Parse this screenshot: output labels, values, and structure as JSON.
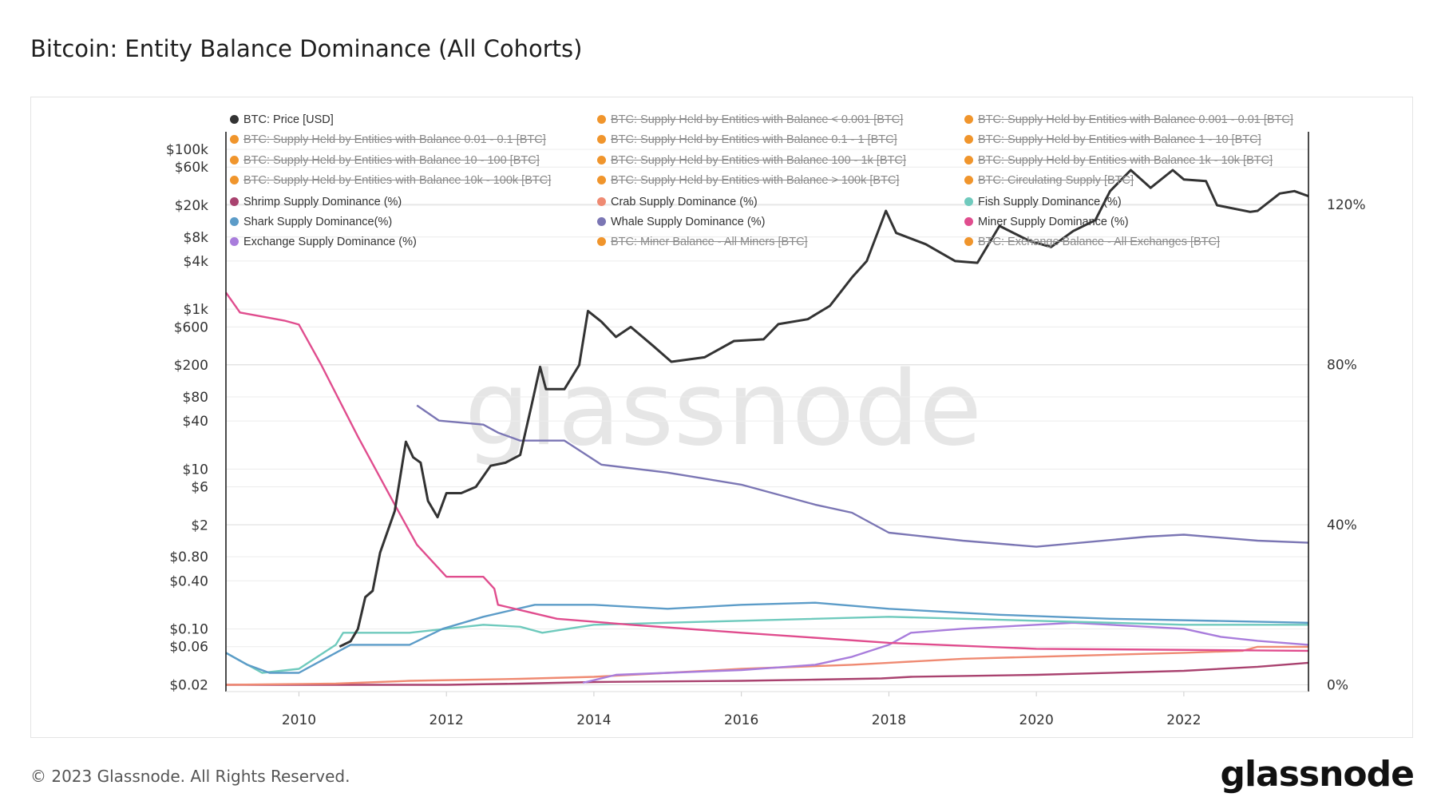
{
  "title": "Bitcoin: Entity Balance Dominance (All Cohorts)",
  "footer": "© 2023 Glassnode. All Rights Reserved.",
  "logo": "glassnode",
  "watermark": "glassnode",
  "legend": [
    {
      "label": "BTC: Price [USD]",
      "color": "#333333",
      "active": true
    },
    {
      "label": "BTC: Supply Held by Entities with Balance < 0.001 [BTC]",
      "color": "#f0952c",
      "active": false
    },
    {
      "label": "BTC: Supply Held by Entities with Balance 0.001 - 0.01 [BTC]",
      "color": "#f0952c",
      "active": false
    },
    {
      "label": "BTC: Supply Held by Entities with Balance 0.01 - 0.1 [BTC]",
      "color": "#f0952c",
      "active": false
    },
    {
      "label": "BTC: Supply Held by Entities with Balance 0.1 - 1 [BTC]",
      "color": "#f0952c",
      "active": false
    },
    {
      "label": "BTC: Supply Held by Entities with Balance 1 - 10 [BTC]",
      "color": "#f0952c",
      "active": false
    },
    {
      "label": "BTC: Supply Held by Entities with Balance 10 - 100 [BTC]",
      "color": "#f0952c",
      "active": false
    },
    {
      "label": "BTC: Supply Held by Entities with Balance 100 - 1k [BTC]",
      "color": "#f0952c",
      "active": false
    },
    {
      "label": "BTC: Supply Held by Entities with Balance 1k - 10k [BTC]",
      "color": "#f0952c",
      "active": false
    },
    {
      "label": "BTC: Supply Held by Entities with Balance 10k - 100k [BTC]",
      "color": "#f0952c",
      "active": false
    },
    {
      "label": "BTC: Supply Held by Entities with Balance > 100k [BTC]",
      "color": "#f0952c",
      "active": false
    },
    {
      "label": "BTC: Circulating Supply [BTC]",
      "color": "#f0952c",
      "active": false
    },
    {
      "label": "Shrimp Supply Dominance (%)",
      "color": "#a9426f",
      "active": true
    },
    {
      "label": "Crab Supply Dominance (%)",
      "color": "#ef8a72",
      "active": true
    },
    {
      "label": "Fish Supply Dominance (%)",
      "color": "#6fcabd",
      "active": true
    },
    {
      "label": "Shark Supply Dominance(%)",
      "color": "#5c9cc8",
      "active": true
    },
    {
      "label": "Whale Supply Dominance (%)",
      "color": "#7b76b4",
      "active": true
    },
    {
      "label": "Miner Supply Dominance (%)",
      "color": "#e04d8e",
      "active": true
    },
    {
      "label": "Exchange Supply Dominance (%)",
      "color": "#a97ddc",
      "active": true
    },
    {
      "label": "BTC: Miner Balance - All Miners [BTC]",
      "color": "#f0952c",
      "active": false
    },
    {
      "label": "BTC: Exchange Balance - All Exchanges [BTC]",
      "color": "#f0952c",
      "active": false
    }
  ],
  "chart_data": {
    "type": "line",
    "title": "Bitcoin: Entity Balance Dominance (All Cohorts)",
    "x_range": [
      2009.01,
      2023.69
    ],
    "x_ticks": [
      "2010",
      "2012",
      "2014",
      "2016",
      "2018",
      "2020",
      "2022"
    ],
    "y_left": {
      "scale": "log",
      "range": [
        0.02,
        100000
      ],
      "ticks": [
        [
          "$100k",
          100000
        ],
        [
          "$60k",
          60000
        ],
        [
          "$20k",
          20000
        ],
        [
          "$8k",
          8000
        ],
        [
          "$4k",
          4000
        ],
        [
          "$1k",
          1000
        ],
        [
          "$600",
          600
        ],
        [
          "$200",
          200
        ],
        [
          "$80",
          80
        ],
        [
          "$40",
          40
        ],
        [
          "$10",
          10
        ],
        [
          "$6",
          6
        ],
        [
          "$2",
          2
        ],
        [
          "$0.80",
          0.8
        ],
        [
          "$0.40",
          0.4
        ],
        [
          "$0.10",
          0.1
        ],
        [
          "$0.06",
          0.06
        ],
        [
          "$0.02",
          0.02
        ]
      ]
    },
    "y_right": {
      "scale": "linear",
      "range": [
        0,
        120
      ],
      "ticks": [
        [
          "0%",
          0
        ],
        [
          "40%",
          40
        ],
        [
          "80%",
          80
        ],
        [
          "120%",
          120
        ]
      ]
    },
    "grid": true,
    "legend_position": "top",
    "series": [
      {
        "name": "BTC: Price [USD]",
        "axis": "left",
        "color": "#333333",
        "points": [
          [
            2010.55,
            0.06
          ],
          [
            2010.7,
            0.07
          ],
          [
            2010.8,
            0.1
          ],
          [
            2010.9,
            0.25
          ],
          [
            2011.0,
            0.3
          ],
          [
            2011.1,
            0.9
          ],
          [
            2011.3,
            3
          ],
          [
            2011.45,
            22
          ],
          [
            2011.55,
            14
          ],
          [
            2011.65,
            12
          ],
          [
            2011.75,
            4
          ],
          [
            2011.88,
            2.5
          ],
          [
            2012.0,
            5
          ],
          [
            2012.2,
            5
          ],
          [
            2012.4,
            6
          ],
          [
            2012.6,
            11
          ],
          [
            2012.8,
            12
          ],
          [
            2013.0,
            15
          ],
          [
            2013.15,
            60
          ],
          [
            2013.27,
            190
          ],
          [
            2013.35,
            100
          ],
          [
            2013.6,
            100
          ],
          [
            2013.8,
            200
          ],
          [
            2013.92,
            950
          ],
          [
            2014.1,
            700
          ],
          [
            2014.3,
            450
          ],
          [
            2014.5,
            600
          ],
          [
            2014.8,
            350
          ],
          [
            2015.05,
            220
          ],
          [
            2015.5,
            250
          ],
          [
            2015.9,
            400
          ],
          [
            2016.3,
            420
          ],
          [
            2016.5,
            650
          ],
          [
            2016.9,
            750
          ],
          [
            2017.2,
            1100
          ],
          [
            2017.5,
            2500
          ],
          [
            2017.7,
            4000
          ],
          [
            2017.96,
            17000
          ],
          [
            2018.1,
            9000
          ],
          [
            2018.5,
            6500
          ],
          [
            2018.9,
            4000
          ],
          [
            2019.2,
            3800
          ],
          [
            2019.5,
            11000
          ],
          [
            2019.9,
            7200
          ],
          [
            2020.2,
            6000
          ],
          [
            2020.5,
            9500
          ],
          [
            2020.8,
            13000
          ],
          [
            2021.0,
            30000
          ],
          [
            2021.28,
            55000
          ],
          [
            2021.55,
            33000
          ],
          [
            2021.85,
            55000
          ],
          [
            2022.0,
            42000
          ],
          [
            2022.3,
            40000
          ],
          [
            2022.45,
            20000
          ],
          [
            2022.9,
            16500
          ],
          [
            2023.0,
            17000
          ],
          [
            2023.3,
            28000
          ],
          [
            2023.5,
            30000
          ],
          [
            2023.69,
            26000
          ]
        ]
      },
      {
        "name": "Whale Supply Dominance (%)",
        "axis": "right",
        "color": "#7b76b4",
        "points": [
          [
            2011.6,
            69.8
          ],
          [
            2011.9,
            66
          ],
          [
            2012.5,
            65
          ],
          [
            2012.7,
            63
          ],
          [
            2013.0,
            61
          ],
          [
            2013.6,
            61
          ],
          [
            2014.1,
            55
          ],
          [
            2015,
            53
          ],
          [
            2016,
            50
          ],
          [
            2017,
            45
          ],
          [
            2017.5,
            43
          ],
          [
            2018.0,
            38
          ],
          [
            2019,
            36
          ],
          [
            2020,
            34.5
          ],
          [
            2021.5,
            37
          ],
          [
            2022,
            37.5
          ],
          [
            2023,
            36
          ],
          [
            2023.69,
            35.5
          ]
        ]
      },
      {
        "name": "Miner Supply Dominance (%)",
        "axis": "right",
        "color": "#e04d8e",
        "points": [
          [
            2009.01,
            98
          ],
          [
            2009.2,
            93
          ],
          [
            2009.8,
            91
          ],
          [
            2010.0,
            90
          ],
          [
            2010.3,
            80
          ],
          [
            2010.8,
            62
          ],
          [
            2011.3,
            45
          ],
          [
            2011.6,
            35
          ],
          [
            2012.0,
            27
          ],
          [
            2012.5,
            27
          ],
          [
            2012.65,
            24
          ],
          [
            2012.7,
            20
          ],
          [
            2013.5,
            16.5
          ],
          [
            2014.5,
            15
          ],
          [
            2016,
            13
          ],
          [
            2018,
            10.5
          ],
          [
            2020,
            9
          ],
          [
            2023.69,
            8.5
          ]
        ]
      },
      {
        "name": "Shark Supply Dominance(%)",
        "axis": "right",
        "color": "#5c9cc8",
        "points": [
          [
            2009.01,
            8
          ],
          [
            2009.3,
            5
          ],
          [
            2009.6,
            3
          ],
          [
            2010.0,
            3
          ],
          [
            2010.5,
            8
          ],
          [
            2010.7,
            10
          ],
          [
            2011.5,
            10
          ],
          [
            2011.95,
            14
          ],
          [
            2012.5,
            17
          ],
          [
            2013.2,
            20
          ],
          [
            2014,
            20
          ],
          [
            2015,
            19
          ],
          [
            2016,
            20
          ],
          [
            2017,
            20.5
          ],
          [
            2018,
            19
          ],
          [
            2019.5,
            17.5
          ],
          [
            2021,
            16.5
          ],
          [
            2023.69,
            15.5
          ]
        ]
      },
      {
        "name": "Fish Supply Dominance (%)",
        "axis": "right",
        "color": "#6fcabd",
        "points": [
          [
            2009.01,
            8
          ],
          [
            2009.5,
            3
          ],
          [
            2010.0,
            4
          ],
          [
            2010.5,
            10
          ],
          [
            2010.6,
            13
          ],
          [
            2011.5,
            13
          ],
          [
            2012.5,
            15
          ],
          [
            2013,
            14.5
          ],
          [
            2013.3,
            13
          ],
          [
            2014,
            15
          ],
          [
            2016,
            16
          ],
          [
            2018,
            17
          ],
          [
            2020,
            16
          ],
          [
            2022,
            15
          ],
          [
            2023.69,
            15
          ]
        ]
      },
      {
        "name": "Exchange Supply Dominance (%)",
        "axis": "right",
        "color": "#a97ddc",
        "points": [
          [
            2013.85,
            0.5
          ],
          [
            2014.3,
            2.5
          ],
          [
            2015,
            3
          ],
          [
            2016,
            3.7
          ],
          [
            2017,
            5
          ],
          [
            2017.5,
            7
          ],
          [
            2018.0,
            10
          ],
          [
            2018.3,
            13
          ],
          [
            2019,
            14
          ],
          [
            2020,
            15
          ],
          [
            2020.5,
            15.5
          ],
          [
            2021.5,
            14.5
          ],
          [
            2022,
            14
          ],
          [
            2022.5,
            12
          ],
          [
            2023,
            11
          ],
          [
            2023.69,
            10
          ]
        ]
      },
      {
        "name": "Crab Supply Dominance (%)",
        "axis": "right",
        "color": "#ef8a72",
        "points": [
          [
            2009.01,
            0
          ],
          [
            2010.5,
            0.3
          ],
          [
            2011.5,
            1
          ],
          [
            2013,
            1.5
          ],
          [
            2014,
            2
          ],
          [
            2015,
            3
          ],
          [
            2016,
            4
          ],
          [
            2017.5,
            5
          ],
          [
            2018,
            5.5
          ],
          [
            2019,
            6.5
          ],
          [
            2020,
            7
          ],
          [
            2022,
            8
          ],
          [
            2022.8,
            8.5
          ],
          [
            2023,
            9.5
          ],
          [
            2023.69,
            9.5
          ]
        ]
      },
      {
        "name": "Shrimp Supply Dominance (%)",
        "axis": "right",
        "color": "#a9426f",
        "points": [
          [
            2009.01,
            0
          ],
          [
            2012,
            0
          ],
          [
            2013,
            0.3
          ],
          [
            2014,
            0.7
          ],
          [
            2016,
            1
          ],
          [
            2017,
            1.3
          ],
          [
            2017.9,
            1.6
          ],
          [
            2018.3,
            2
          ],
          [
            2020,
            2.5
          ],
          [
            2022,
            3.5
          ],
          [
            2023,
            4.5
          ],
          [
            2023.69,
            5.5
          ]
        ]
      }
    ]
  }
}
